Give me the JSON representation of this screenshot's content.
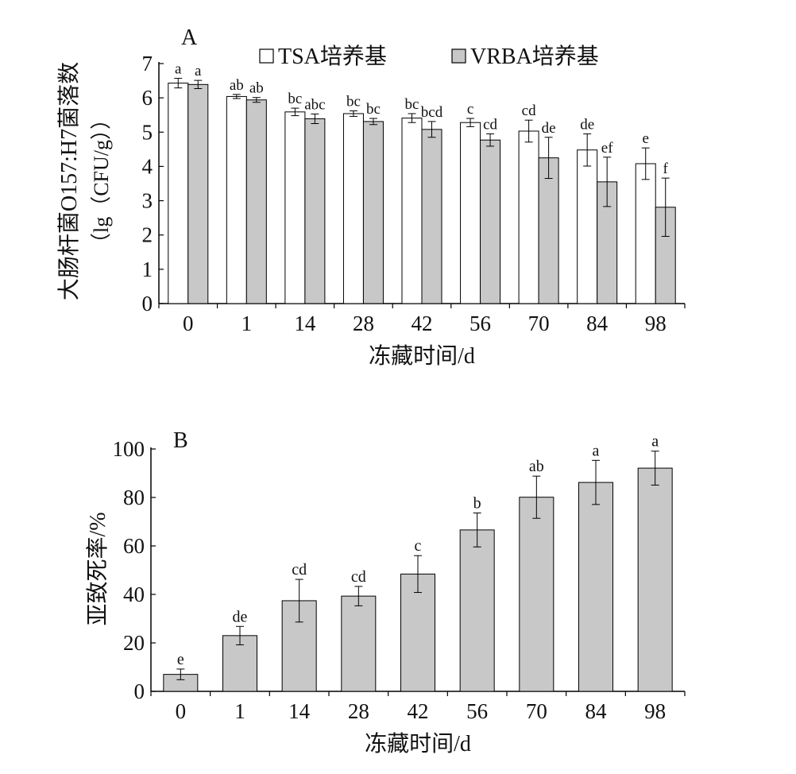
{
  "chart_data": [
    {
      "type": "bar",
      "panel": "A",
      "xlabel": "冻藏时间/d",
      "ylabel": [
        "大肠杆菌O157:H7菌落数",
        "（lg（CFU/g））"
      ],
      "ylim": [
        0,
        7
      ],
      "yticks": [
        "0",
        "1",
        "2",
        "3",
        "4",
        "5",
        "6",
        "7"
      ],
      "categories": [
        "0",
        "1",
        "14",
        "28",
        "42",
        "56",
        "70",
        "84",
        "98"
      ],
      "legend": {
        "placement": "top"
      },
      "series": [
        {
          "name": "TSA培养基",
          "color": "#ffffff",
          "values": [
            6.43,
            6.04,
            5.59,
            5.54,
            5.41,
            5.28,
            5.03,
            4.48,
            4.08
          ],
          "errors": [
            0.14,
            0.06,
            0.11,
            0.08,
            0.13,
            0.12,
            0.32,
            0.47,
            0.46
          ],
          "labels": [
            "a",
            "ab",
            "bc",
            "bc",
            "bc",
            "c",
            "cd",
            "de",
            "e"
          ]
        },
        {
          "name": "VRBA培养基",
          "color": "#c8c8c8",
          "values": [
            6.39,
            5.94,
            5.39,
            5.31,
            5.08,
            4.77,
            4.25,
            3.55,
            2.81
          ],
          "errors": [
            0.12,
            0.07,
            0.14,
            0.09,
            0.23,
            0.18,
            0.6,
            0.72,
            0.85
          ],
          "labels": [
            "a",
            "ab",
            "abc",
            "bc",
            "bcd",
            "cd",
            "de",
            "ef",
            "f"
          ]
        }
      ]
    },
    {
      "type": "bar",
      "panel": "B",
      "xlabel": "冻藏时间/d",
      "ylabel": "亚致死率/%",
      "ylim": [
        0,
        100
      ],
      "yticks": [
        "0",
        "20",
        "40",
        "60",
        "80",
        "100"
      ],
      "categories": [
        "0",
        "1",
        "14",
        "28",
        "42",
        "56",
        "70",
        "84",
        "98"
      ],
      "series": [
        {
          "name": "亚致死率",
          "color": "#c8c8c8",
          "values": [
            7.0,
            23.0,
            37.4,
            39.3,
            48.4,
            66.6,
            80.1,
            86.2,
            92.1
          ],
          "errors": [
            2.2,
            3.8,
            8.8,
            4.0,
            7.6,
            7.0,
            8.7,
            9.1,
            7.0
          ],
          "labels": [
            "e",
            "de",
            "cd",
            "cd",
            "c",
            "b",
            "ab",
            "a",
            "a"
          ]
        }
      ]
    }
  ]
}
